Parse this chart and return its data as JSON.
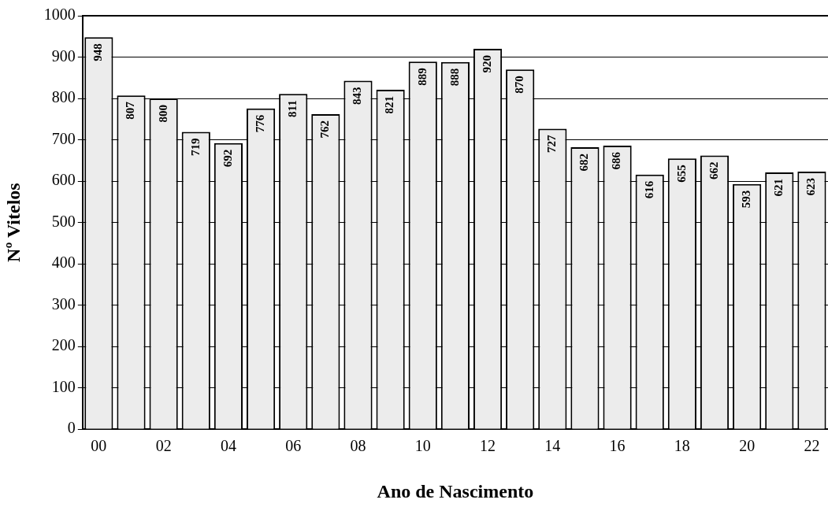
{
  "chart_data": {
    "type": "bar",
    "xlabel": "Ano de Nascimento",
    "ylabel": "Nº Vitelos",
    "categories": [
      "00",
      null,
      "02",
      null,
      "04",
      null,
      "06",
      null,
      "08",
      null,
      "10",
      null,
      "12",
      null,
      "14",
      null,
      "16",
      null,
      "18",
      null,
      "20",
      null,
      "22"
    ],
    "values": [
      948,
      807,
      800,
      719,
      692,
      776,
      811,
      762,
      843,
      821,
      889,
      888,
      920,
      870,
      727,
      682,
      686,
      616,
      655,
      662,
      593,
      621,
      623
    ],
    "color": "#ececec",
    "ylim": [
      0,
      1000
    ],
    "yticks": [
      0,
      100,
      200,
      300,
      400,
      500,
      600,
      700,
      800,
      900,
      1000
    ],
    "grid": "y",
    "data_labels": true
  }
}
